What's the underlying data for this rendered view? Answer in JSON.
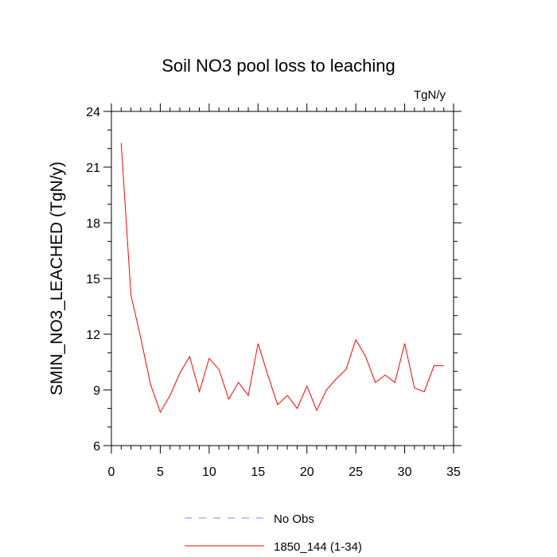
{
  "chart_data": {
    "type": "line",
    "title": "Soil NO3 pool loss to leaching",
    "units_label": "TgN/y",
    "ylabel": "SMIN_NO3_LEACHED  (TgN/y)",
    "xlabel": "",
    "xlim": [
      0,
      35
    ],
    "ylim": [
      6,
      24
    ],
    "x_ticks": [
      0,
      5,
      10,
      15,
      20,
      25,
      30,
      35
    ],
    "y_ticks": [
      6,
      9,
      12,
      15,
      18,
      21,
      24
    ],
    "grid": false,
    "legend_position": "bottom-center",
    "series": [
      {
        "name": "No Obs",
        "color": "#8080ff",
        "dashed": true,
        "x": [],
        "values": []
      },
      {
        "name": "1850_144 (1-34)",
        "color": "#ff0000",
        "dashed": false,
        "x": [
          1,
          2,
          3,
          4,
          5,
          6,
          7,
          8,
          9,
          10,
          11,
          12,
          13,
          14,
          15,
          16,
          17,
          18,
          19,
          20,
          21,
          22,
          23,
          24,
          25,
          26,
          27,
          28,
          29,
          30,
          31,
          32,
          33,
          34
        ],
        "values": [
          22.3,
          14.1,
          11.8,
          9.3,
          7.8,
          8.7,
          9.9,
          10.8,
          8.9,
          10.7,
          10.1,
          8.5,
          9.4,
          8.7,
          11.5,
          9.8,
          8.2,
          8.7,
          8.0,
          9.2,
          7.9,
          9.0,
          9.6,
          10.1,
          11.7,
          10.8,
          9.4,
          9.8,
          9.4,
          11.5,
          9.1,
          8.9,
          10.3,
          10.3
        ]
      }
    ]
  }
}
